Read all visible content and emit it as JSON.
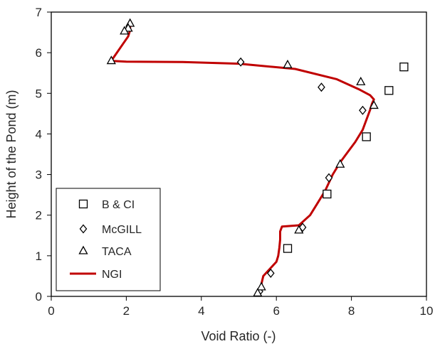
{
  "chart_data": {
    "type": "scatter",
    "xlabel": "Void Ratio (-)",
    "ylabel": "Height of the Pond (m)",
    "xlim": [
      0,
      10
    ],
    "ylim": [
      0,
      7
    ],
    "xticks": [
      "0",
      "2",
      "4",
      "6",
      "8",
      "10"
    ],
    "yticks": [
      "0",
      "1",
      "2",
      "3",
      "4",
      "5",
      "6",
      "7"
    ],
    "grid": false,
    "legend_position": "bottom-left",
    "series": [
      {
        "name": "B & CI",
        "type": "scatter",
        "marker": "square",
        "color": "#000000",
        "x": [
          9.4,
          9.0,
          8.4,
          7.35,
          6.3
        ],
        "y": [
          5.65,
          5.07,
          3.93,
          2.52,
          1.18
        ]
      },
      {
        "name": "McGILL",
        "type": "scatter",
        "marker": "diamond",
        "color": "#000000",
        "x": [
          5.05,
          7.2,
          8.3,
          7.4,
          6.7,
          5.85,
          5.55
        ],
        "y": [
          5.77,
          5.15,
          4.58,
          2.92,
          1.7,
          0.57,
          0.12
        ]
      },
      {
        "name": "TACA",
        "type": "scatter",
        "marker": "triangle",
        "color": "#000000",
        "x": [
          2.1,
          2.05,
          1.95,
          1.6,
          6.3,
          8.25,
          8.6,
          7.7,
          6.6,
          5.6,
          5.5
        ],
        "y": [
          6.72,
          6.6,
          6.53,
          5.8,
          5.7,
          5.28,
          4.7,
          3.25,
          1.63,
          0.23,
          0.08
        ]
      },
      {
        "name": "NGI",
        "type": "line",
        "color": "#c00000",
        "x": [
          5.55,
          5.6,
          5.65,
          5.9,
          6.0,
          6.05,
          6.08,
          6.1,
          6.1,
          6.15,
          6.6,
          6.9,
          7.1,
          7.3,
          7.5,
          7.7,
          7.9,
          8.1,
          8.3,
          8.4,
          8.5,
          8.55,
          8.6,
          8.5,
          8.2,
          7.6,
          6.5,
          5.0,
          3.5,
          2.0,
          1.6,
          1.75,
          1.9,
          2.05,
          2.1,
          2.1
        ],
        "y": [
          0.05,
          0.3,
          0.5,
          0.75,
          0.85,
          1.0,
          1.2,
          1.4,
          1.6,
          1.72,
          1.75,
          2.0,
          2.3,
          2.6,
          3.0,
          3.3,
          3.55,
          3.8,
          4.1,
          4.35,
          4.6,
          4.75,
          4.85,
          4.95,
          5.1,
          5.35,
          5.6,
          5.73,
          5.77,
          5.78,
          5.8,
          6.0,
          6.2,
          6.4,
          6.55,
          6.7
        ]
      }
    ]
  }
}
